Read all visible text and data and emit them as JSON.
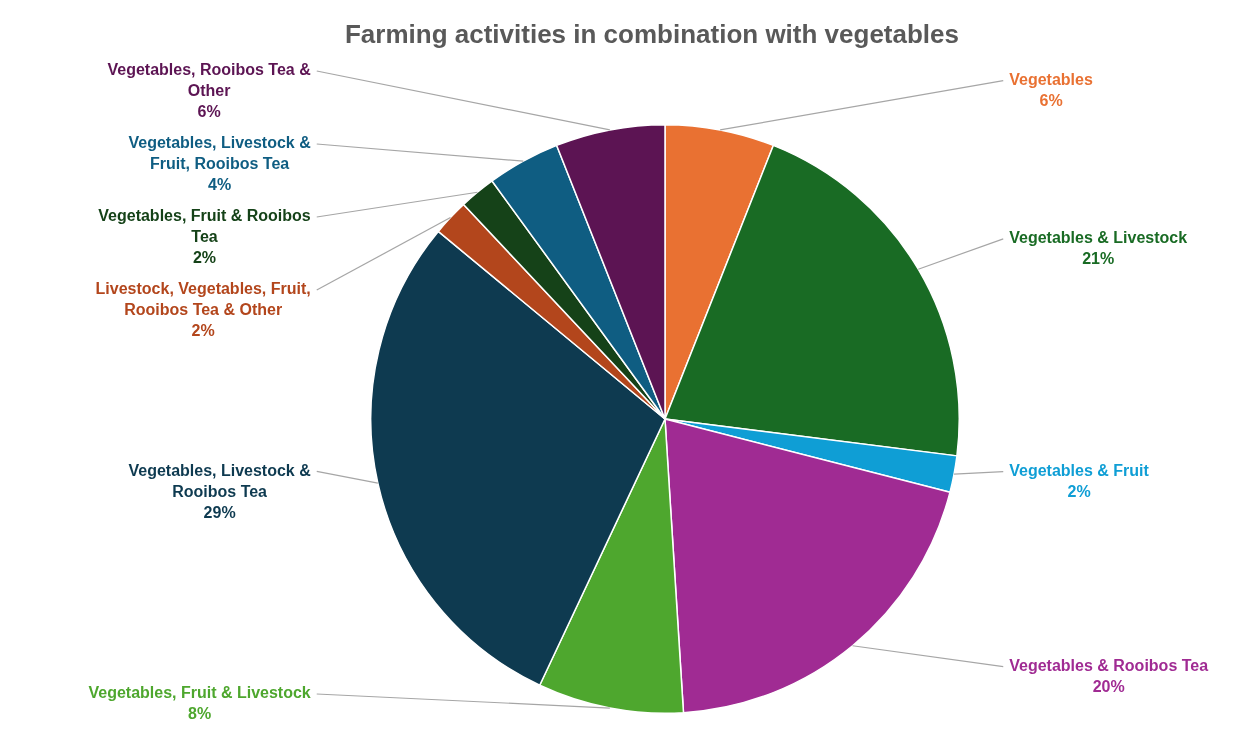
{
  "chart_data": {
    "type": "pie",
    "title": "Farming activities in combination with vegetables",
    "categories": [
      "Vegetables",
      "Vegetables & Livestock",
      "Vegetables & Fruit",
      "Vegetables & Rooibos Tea",
      "Vegetables, Fruit & Livestock",
      "Vegetables, Livestock & Rooibos Tea",
      "Livestock, Vegetables, Fruit, Rooibos Tea & Other",
      "Vegetables, Fruit & Rooibos Tea",
      "Vegetables, Livestock & Fruit, Rooibos Tea",
      "Vegetables, Rooibos Tea & Other"
    ],
    "values": [
      6,
      21,
      2,
      20,
      8,
      29,
      2,
      2,
      4,
      6
    ],
    "value_labels": [
      "6%",
      "21%",
      "2%",
      "20%",
      "8%",
      "29%",
      "2%",
      "2%",
      "4%",
      "6%"
    ],
    "colors": [
      "#e97132",
      "#196b24",
      "#0f9ed5",
      "#a02b93",
      "#4ea72e",
      "#0e3a50",
      "#b3461c",
      "#154218",
      "#0f5d82",
      "#5c1453"
    ],
    "legend": false
  }
}
